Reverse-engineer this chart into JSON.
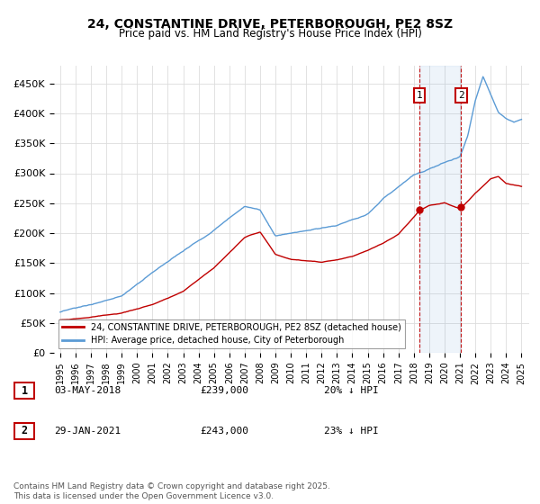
{
  "title": "24, CONSTANTINE DRIVE, PETERBOROUGH, PE2 8SZ",
  "subtitle": "Price paid vs. HM Land Registry's House Price Index (HPI)",
  "ylabel_ticks": [
    "£0",
    "£50K",
    "£100K",
    "£150K",
    "£200K",
    "£250K",
    "£300K",
    "£350K",
    "£400K",
    "£450K"
  ],
  "ytick_values": [
    0,
    50000,
    100000,
    150000,
    200000,
    250000,
    300000,
    350000,
    400000,
    450000
  ],
  "ylim": [
    0,
    480000
  ],
  "xlim_start": 1994.6,
  "xlim_end": 2025.5,
  "hpi_color": "#5B9BD5",
  "price_color": "#C00000",
  "purchase1_date": 2018.35,
  "purchase1_price": 239000,
  "purchase2_date": 2021.08,
  "purchase2_price": 243000,
  "legend_label1": "24, CONSTANTINE DRIVE, PETERBOROUGH, PE2 8SZ (detached house)",
  "legend_label2": "HPI: Average price, detached house, City of Peterborough",
  "annotation1_date": "03-MAY-2018",
  "annotation1_price": "£239,000",
  "annotation1_hpi": "20% ↓ HPI",
  "annotation2_date": "29-JAN-2021",
  "annotation2_price": "£243,000",
  "annotation2_hpi": "23% ↓ HPI",
  "footnote": "Contains HM Land Registry data © Crown copyright and database right 2025.\nThis data is licensed under the Open Government Licence v3.0.",
  "background_color": "#FFFFFF",
  "grid_color": "#DDDDDD"
}
